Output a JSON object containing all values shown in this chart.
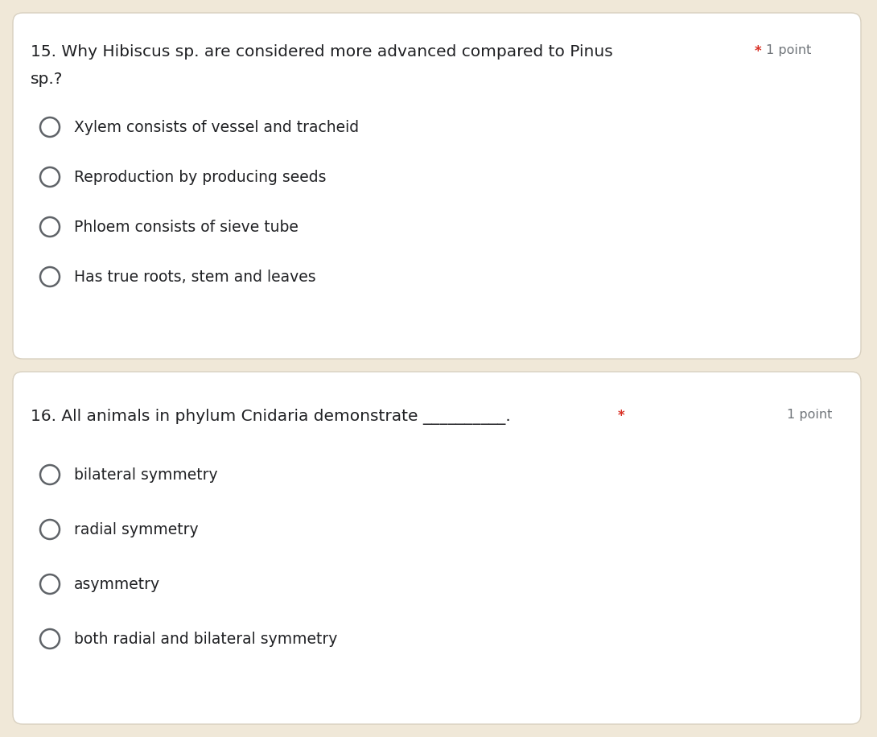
{
  "bg_color": "#f0e8d8",
  "card_color": "#ffffff",
  "card_border_color": "#d8d0c0",
  "question1_line1": "15. Why Hibiscus sp. are considered more advanced compared to Pinus",
  "question1_line2": "sp.?",
  "question1_required_star": "*",
  "question1_points": "1 point",
  "question1_options": [
    "Xylem consists of vessel and tracheid",
    "Reproduction by producing seeds",
    "Phloem consists of sieve tube",
    "Has true roots, stem and leaves"
  ],
  "question2_line1": "16. All animals in phylum Cnidaria demonstrate __________.",
  "question2_required_star": "*",
  "question2_points": "1 point",
  "question2_options": [
    "bilateral symmetry",
    "radial symmetry",
    "asymmetry",
    "both radial and bilateral symmetry"
  ],
  "question_text_color": "#202124",
  "option_text_color": "#202124",
  "points_color": "#70757a",
  "star_color": "#d93025",
  "circle_edge_color": "#5f6368",
  "circle_face_color": "#ffffff",
  "font_family": "DejaVu Sans",
  "q_fontsize": 14.5,
  "opt_fontsize": 13.5,
  "pts_fontsize": 11.5,
  "star_fontsize": 12
}
